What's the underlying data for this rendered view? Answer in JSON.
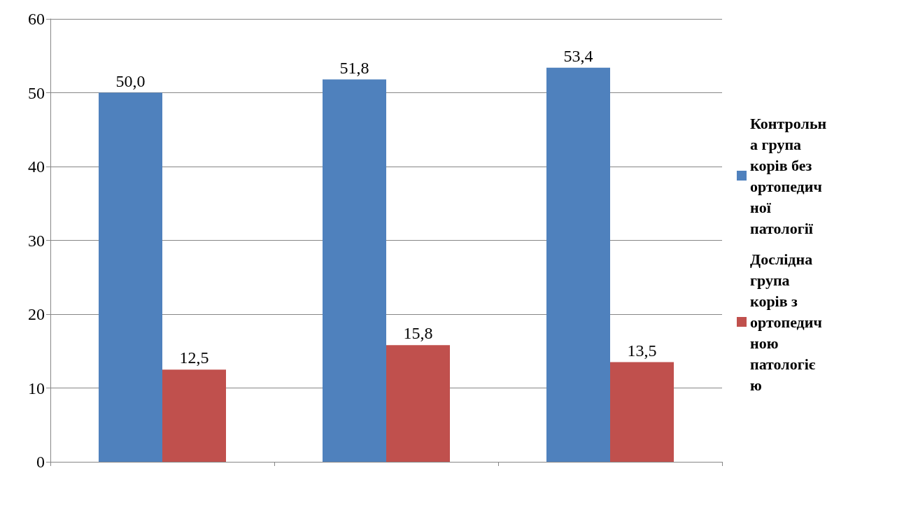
{
  "chart_data": {
    "type": "bar",
    "categories": [
      null,
      null,
      null
    ],
    "series": [
      {
        "name": "Контрольна група корів без ортопедичної патології",
        "color": "#4f81bd",
        "values": [
          50.0,
          51.8,
          53.4
        ],
        "value_labels": [
          "50,0",
          "51,8",
          "53,4"
        ]
      },
      {
        "name": "Дослідна група корів з ортопедичною патологією",
        "color": "#c0504d",
        "values": [
          12.5,
          15.8,
          13.5
        ],
        "value_labels": [
          "12,5",
          "15,8",
          "13,5"
        ]
      }
    ],
    "ylim": [
      0,
      60
    ],
    "yticks": [
      0,
      10,
      20,
      30,
      40,
      50,
      60
    ],
    "grid": "y",
    "legend": "right"
  }
}
